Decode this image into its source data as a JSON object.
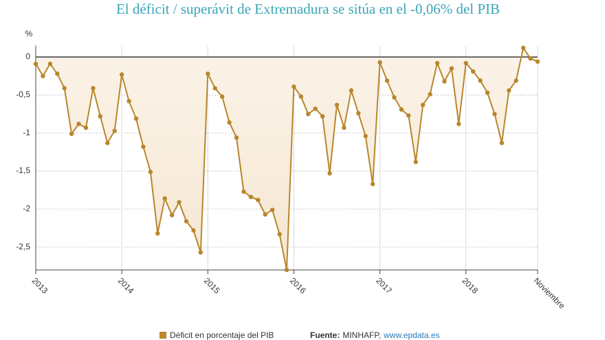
{
  "chart_data": {
    "type": "line",
    "title": "El déficit / superávit de Extremadura se sitúa en el -0,06% del PIB",
    "y_label": "%",
    "categories": [
      "2013",
      null,
      null,
      null,
      null,
      null,
      null,
      null,
      null,
      null,
      null,
      null,
      "2014",
      null,
      null,
      null,
      null,
      null,
      null,
      null,
      null,
      null,
      null,
      null,
      "2015",
      null,
      null,
      null,
      null,
      null,
      null,
      null,
      null,
      null,
      null,
      null,
      "2016",
      null,
      null,
      null,
      null,
      null,
      null,
      null,
      null,
      null,
      null,
      null,
      "2017",
      null,
      null,
      null,
      null,
      null,
      null,
      null,
      null,
      null,
      null,
      null,
      "2018",
      null,
      null,
      null,
      null,
      null,
      null,
      null,
      null,
      null,
      "Noviembre"
    ],
    "series": [
      {
        "name": "Déficit en porcentaje del PIB",
        "color": "#b8862b",
        "values": [
          -0.09,
          -0.25,
          -0.09,
          -0.22,
          -0.41,
          -1.01,
          -0.88,
          -0.93,
          -0.41,
          -0.78,
          -1.13,
          -0.97,
          -0.23,
          -0.58,
          -0.81,
          -1.18,
          -1.51,
          -2.32,
          -1.86,
          -2.08,
          -1.91,
          -2.16,
          -2.28,
          -2.57,
          -0.22,
          -0.41,
          -0.52,
          -0.86,
          -1.06,
          -1.77,
          -1.84,
          -1.88,
          -2.07,
          -2.01,
          -2.33,
          -2.8,
          -0.39,
          -0.52,
          -0.75,
          -0.68,
          -0.78,
          -1.53,
          -0.63,
          -0.93,
          -0.44,
          -0.74,
          -1.04,
          -1.67,
          -0.07,
          -0.31,
          -0.53,
          -0.69,
          -0.77,
          -1.38,
          -0.63,
          -0.49,
          -0.08,
          -0.32,
          -0.15,
          -0.88,
          -0.08,
          -0.19,
          -0.31,
          -0.47,
          -0.75,
          -1.13,
          -0.44,
          -0.31,
          0.12,
          -0.02,
          -0.06
        ]
      }
    ],
    "ylim": [
      -2.8,
      0.15
    ],
    "yticks": [
      0,
      {
        "value": -0.5,
        "label": "-0,5"
      },
      -1,
      {
        "value": -1.5,
        "label": "-1,5"
      },
      -2,
      {
        "value": -2.5,
        "label": "-2,5"
      }
    ],
    "grid": true,
    "source_label": "Fuente:",
    "source": "MINHAFP,",
    "source_link": "www.epdata.es"
  }
}
